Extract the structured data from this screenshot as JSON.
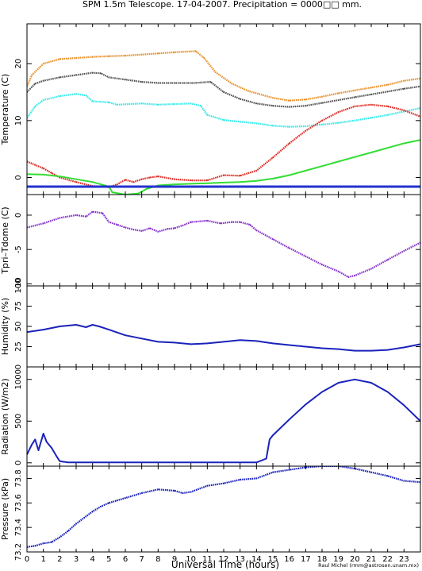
{
  "title": "SPM 1.5m Telescope. 17-04-2007. Precipitation = 0000□□ mm.",
  "footer": {
    "xlabel": "Universal Time (hours)",
    "credit": "Raul Michel (rmm@astrosen.unam.mx)"
  },
  "chart_data": [
    {
      "type": "line",
      "ylabel": "Temperature (C)",
      "ylim": [
        -3,
        27
      ],
      "yticks": [
        0,
        10,
        20
      ],
      "xlim": [
        0,
        24
      ],
      "series": [
        {
          "color": "#e8902a",
          "style": "dots",
          "points": [
            [
              0,
              16
            ],
            [
              0.3,
              18
            ],
            [
              1,
              20
            ],
            [
              2,
              20.8
            ],
            [
              3,
              21
            ],
            [
              4,
              21.2
            ],
            [
              5,
              21.3
            ],
            [
              6,
              21.4
            ],
            [
              7,
              21.6
            ],
            [
              8,
              21.8
            ],
            [
              9,
              22
            ],
            [
              10.3,
              22.2
            ],
            [
              10.8,
              21
            ],
            [
              11.5,
              18.5
            ],
            [
              12.5,
              16.5
            ],
            [
              13.5,
              15.2
            ],
            [
              15,
              14
            ],
            [
              16,
              13.5
            ],
            [
              17,
              13.7
            ],
            [
              18,
              14.2
            ],
            [
              19,
              14.8
            ],
            [
              20,
              15.3
            ],
            [
              21,
              15.8
            ],
            [
              22,
              16.3
            ],
            [
              23,
              17
            ],
            [
              24,
              17.4
            ]
          ]
        },
        {
          "color": "#555555",
          "style": "dots",
          "points": [
            [
              0,
              15
            ],
            [
              0.5,
              16.5
            ],
            [
              1,
              17
            ],
            [
              2,
              17.6
            ],
            [
              3,
              18
            ],
            [
              4,
              18.4
            ],
            [
              4.5,
              18.3
            ],
            [
              5,
              17.6
            ],
            [
              6,
              17.2
            ],
            [
              7,
              16.8
            ],
            [
              8,
              16.6
            ],
            [
              9,
              16.6
            ],
            [
              10.2,
              16.6
            ],
            [
              11.2,
              16.8
            ],
            [
              12,
              15
            ],
            [
              13,
              13.8
            ],
            [
              14,
              13
            ],
            [
              15,
              12.6
            ],
            [
              16,
              12.4
            ],
            [
              17,
              12.6
            ],
            [
              18,
              13.1
            ],
            [
              19,
              13.6
            ],
            [
              20,
              14.1
            ],
            [
              21,
              14.6
            ],
            [
              22,
              15.1
            ],
            [
              23,
              15.6
            ],
            [
              24,
              16
            ]
          ]
        },
        {
          "color": "#33e8e8",
          "style": "dots",
          "points": [
            [
              0,
              10.5
            ],
            [
              0.5,
              12.5
            ],
            [
              1,
              13.6
            ],
            [
              2,
              14.3
            ],
            [
              3,
              14.7
            ],
            [
              3.6,
              14.4
            ],
            [
              4,
              13.4
            ],
            [
              5,
              13.2
            ],
            [
              5.5,
              12.8
            ],
            [
              7,
              13
            ],
            [
              8,
              12.8
            ],
            [
              9,
              12.9
            ],
            [
              10,
              13
            ],
            [
              10.6,
              12.6
            ],
            [
              11,
              11
            ],
            [
              12,
              10.1
            ],
            [
              13,
              9.8
            ],
            [
              14,
              9.5
            ],
            [
              15,
              9.1
            ],
            [
              16,
              8.9
            ],
            [
              17,
              9
            ],
            [
              18,
              9.3
            ],
            [
              19,
              9.6
            ],
            [
              20,
              10
            ],
            [
              21,
              10.5
            ],
            [
              22,
              11
            ],
            [
              23,
              11.6
            ],
            [
              24,
              12.2
            ]
          ]
        },
        {
          "color": "#dd2a22",
          "style": "dots",
          "points": [
            [
              0,
              2.8
            ],
            [
              0.5,
              2.2
            ],
            [
              1,
              1.6
            ],
            [
              1.5,
              0.8
            ],
            [
              2,
              0
            ],
            [
              3,
              -0.8
            ],
            [
              4,
              -1.5
            ],
            [
              5,
              -1.7
            ],
            [
              5.5,
              -1.2
            ],
            [
              6,
              -0.4
            ],
            [
              6.5,
              -0.8
            ],
            [
              7,
              -0.3
            ],
            [
              7.5,
              0
            ],
            [
              8,
              0.2
            ],
            [
              9,
              -0.3
            ],
            [
              10,
              -0.5
            ],
            [
              11,
              -0.5
            ],
            [
              12,
              0.4
            ],
            [
              13,
              0.3
            ],
            [
              14,
              1.2
            ],
            [
              15,
              3.5
            ],
            [
              16,
              6
            ],
            [
              17,
              8.2
            ],
            [
              18,
              10
            ],
            [
              19,
              11.5
            ],
            [
              20,
              12.5
            ],
            [
              21,
              12.8
            ],
            [
              22,
              12.5
            ],
            [
              23,
              11.8
            ],
            [
              24,
              10.7
            ]
          ]
        },
        {
          "color": "#33dd33",
          "style": "line",
          "points": [
            [
              0,
              0.6
            ],
            [
              1,
              0.5
            ],
            [
              2,
              0.2
            ],
            [
              3,
              -0.3
            ],
            [
              4,
              -0.8
            ],
            [
              5,
              -1.6
            ],
            [
              5.2,
              -2.6
            ],
            [
              6,
              -3
            ],
            [
              6.8,
              -2.8
            ],
            [
              7.3,
              -2
            ],
            [
              8,
              -1.4
            ],
            [
              9,
              -1.2
            ],
            [
              10,
              -1.1
            ],
            [
              11,
              -1
            ],
            [
              12,
              -0.9
            ],
            [
              13,
              -0.8
            ],
            [
              14,
              -0.6
            ],
            [
              15,
              -0.2
            ],
            [
              16,
              0.4
            ],
            [
              17,
              1.2
            ],
            [
              18,
              2
            ],
            [
              19,
              2.8
            ],
            [
              20,
              3.6
            ],
            [
              21,
              4.4
            ],
            [
              22,
              5.2
            ],
            [
              23,
              6
            ],
            [
              24,
              6.6
            ]
          ]
        },
        {
          "color": "#2233cc",
          "style": "line",
          "points": [
            [
              0,
              -1.6
            ],
            [
              24,
              -1.6
            ]
          ]
        }
      ]
    },
    {
      "type": "line",
      "ylabel": "Tpri–Tdome (C)",
      "ylim": [
        -10.3,
        3
      ],
      "yticks": [
        0,
        -5,
        -10
      ],
      "xlim": [
        0,
        24
      ],
      "series": [
        {
          "color": "#8833cc",
          "style": "dots",
          "points": [
            [
              0,
              -1.8
            ],
            [
              1,
              -1.2
            ],
            [
              2,
              -0.4
            ],
            [
              3,
              0
            ],
            [
              3.6,
              -0.2
            ],
            [
              4,
              0.5
            ],
            [
              4.6,
              0.3
            ],
            [
              5,
              -1
            ],
            [
              5.5,
              -1.4
            ],
            [
              6,
              -1.8
            ],
            [
              6.5,
              -2.1
            ],
            [
              7,
              -2.3
            ],
            [
              7.5,
              -1.9
            ],
            [
              8,
              -2.4
            ],
            [
              8.6,
              -2
            ],
            [
              9,
              -1.9
            ],
            [
              9.5,
              -1.5
            ],
            [
              10,
              -1
            ],
            [
              11,
              -0.8
            ],
            [
              11.8,
              -1.2
            ],
            [
              12.5,
              -1
            ],
            [
              13,
              -1
            ],
            [
              13.6,
              -1.4
            ],
            [
              14,
              -2.2
            ],
            [
              15,
              -3.5
            ],
            [
              16,
              -4.8
            ],
            [
              17,
              -6
            ],
            [
              18,
              -7.2
            ],
            [
              19,
              -8.2
            ],
            [
              19.6,
              -9
            ],
            [
              20,
              -8.8
            ],
            [
              21,
              -7.8
            ],
            [
              22,
              -6.5
            ],
            [
              23,
              -5.2
            ],
            [
              24,
              -4
            ]
          ]
        }
      ]
    },
    {
      "type": "line",
      "ylabel": "Humidity (%)",
      "ylim": [
        0,
        100
      ],
      "yticks": [
        0,
        25,
        50,
        75,
        100
      ],
      "xlim": [
        0,
        24
      ],
      "series": [
        {
          "color": "#1a22bb",
          "style": "line",
          "points": [
            [
              0,
              43
            ],
            [
              1,
              46
            ],
            [
              2,
              50
            ],
            [
              3,
              52
            ],
            [
              3.6,
              49
            ],
            [
              4,
              52
            ],
            [
              4.4,
              50
            ],
            [
              5,
              46
            ],
            [
              6,
              39
            ],
            [
              7,
              35
            ],
            [
              8,
              31
            ],
            [
              9,
              30
            ],
            [
              10,
              28
            ],
            [
              11,
              29
            ],
            [
              12,
              31
            ],
            [
              13,
              33
            ],
            [
              14,
              32
            ],
            [
              15,
              29
            ],
            [
              16,
              27
            ],
            [
              17,
              25
            ],
            [
              18,
              23
            ],
            [
              19,
              22
            ],
            [
              20,
              20
            ],
            [
              21,
              20
            ],
            [
              22,
              21
            ],
            [
              23,
              24
            ],
            [
              24,
              28
            ]
          ]
        }
      ]
    },
    {
      "type": "line",
      "ylabel": "Radiation (W/m2)",
      "ylim": [
        -40,
        1150
      ],
      "yticks": [
        0,
        500,
        1000
      ],
      "xlim": [
        0,
        24
      ],
      "series": [
        {
          "color": "#1a22bb",
          "style": "line",
          "points": [
            [
              0,
              100
            ],
            [
              0.3,
              220
            ],
            [
              0.5,
              280
            ],
            [
              0.7,
              150
            ],
            [
              1,
              350
            ],
            [
              1.2,
              250
            ],
            [
              1.5,
              180
            ],
            [
              1.8,
              80
            ],
            [
              2,
              20
            ],
            [
              2.5,
              5
            ],
            [
              5,
              5
            ],
            [
              10,
              5
            ],
            [
              14,
              5
            ],
            [
              14.6,
              50
            ],
            [
              14.8,
              280
            ],
            [
              15,
              330
            ],
            [
              16,
              520
            ],
            [
              17,
              700
            ],
            [
              18,
              850
            ],
            [
              19,
              960
            ],
            [
              20,
              1000
            ],
            [
              21,
              960
            ],
            [
              22,
              850
            ],
            [
              23,
              690
            ],
            [
              24,
              500
            ]
          ]
        }
      ]
    },
    {
      "type": "line",
      "ylabel": "Pressure (kPa)",
      "ylim": [
        73.2,
        73.9
      ],
      "yticks": [
        73.2,
        73.4,
        73.6,
        73.8
      ],
      "ytick_labels": [
        "73.2",
        "73.4",
        "73.6",
        "73.8"
      ],
      "xlim": [
        0,
        24
      ],
      "xticks": [
        0,
        1,
        2,
        3,
        4,
        5,
        6,
        7,
        8,
        9,
        10,
        11,
        12,
        13,
        14,
        15,
        16,
        17,
        18,
        19,
        20,
        21,
        22,
        23
      ],
      "series": [
        {
          "color": "#1a22bb",
          "style": "dots",
          "points": [
            [
              0,
              73.24
            ],
            [
              0.5,
              73.25
            ],
            [
              1,
              73.27
            ],
            [
              1.5,
              73.28
            ],
            [
              2,
              73.32
            ],
            [
              2.5,
              73.37
            ],
            [
              3,
              73.43
            ],
            [
              3.5,
              73.48
            ],
            [
              4,
              73.53
            ],
            [
              4.5,
              73.57
            ],
            [
              5,
              73.6
            ],
            [
              5.5,
              73.62
            ],
            [
              6,
              73.64
            ],
            [
              7,
              73.68
            ],
            [
              8,
              73.71
            ],
            [
              9,
              73.7
            ],
            [
              9.5,
              73.68
            ],
            [
              10,
              73.69
            ],
            [
              11,
              73.74
            ],
            [
              12,
              73.76
            ],
            [
              13,
              73.79
            ],
            [
              14,
              73.8
            ],
            [
              15,
              73.85
            ],
            [
              16,
              73.87
            ],
            [
              17,
              73.89
            ],
            [
              18,
              73.9
            ],
            [
              19,
              73.9
            ],
            [
              20,
              73.88
            ],
            [
              21,
              73.85
            ],
            [
              22,
              73.82
            ],
            [
              23,
              73.78
            ],
            [
              24,
              73.77
            ]
          ]
        }
      ]
    }
  ]
}
